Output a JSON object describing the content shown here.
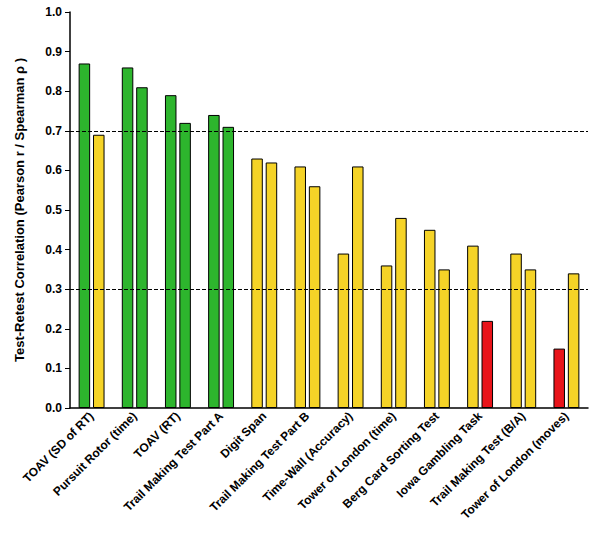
{
  "chart_data": {
    "type": "bar",
    "y_label": "Test-Retest Correlation (Pearson r / Spearman ρ )",
    "categories": [
      "TOAV (SD of RT)",
      "Pursuit Rotor (time)",
      "TOAV (RT)",
      "Trail Making Test Part A",
      "Digit Span",
      "Trail Making Test Part B",
      "Time-Wall (Accuracy)",
      "Tower of London (time)",
      "Berg Card Sorting Test",
      "Iowa Gambling Task",
      "Trail Making Test (B/A)",
      "Tower of London (moves)"
    ],
    "series": [
      {
        "values": [
          0.87,
          0.86,
          0.79,
          0.74,
          0.63,
          0.61,
          0.39,
          0.36,
          0.45,
          0.41,
          0.39,
          0.15
        ],
        "colors": [
          "#2db52d",
          "#2db52d",
          "#2db52d",
          "#2db52d",
          "#f5d327",
          "#f5d327",
          "#f5d327",
          "#f5d327",
          "#f5d327",
          "#f5d327",
          "#f5d327",
          "#e8141a"
        ]
      },
      {
        "values": [
          0.69,
          0.81,
          0.72,
          0.71,
          0.62,
          0.56,
          0.61,
          0.48,
          0.35,
          0.22,
          0.35,
          0.34
        ],
        "colors": [
          "#f5d327",
          "#2db52d",
          "#2db52d",
          "#2db52d",
          "#f5d327",
          "#f5d327",
          "#f5d327",
          "#f5d327",
          "#f5d327",
          "#e8141a",
          "#f5d327",
          "#f5d327"
        ]
      }
    ],
    "reference_lines": [
      0.3,
      0.7
    ],
    "ylim": [
      0,
      1
    ],
    "yticks": [
      {
        "value": 0,
        "label": "0.0"
      },
      0.1,
      0.2,
      0.3,
      0.4,
      0.5,
      0.6,
      0.7,
      0.8,
      0.9,
      {
        "value": 1,
        "label": "1.0"
      }
    ],
    "grid": false
  }
}
